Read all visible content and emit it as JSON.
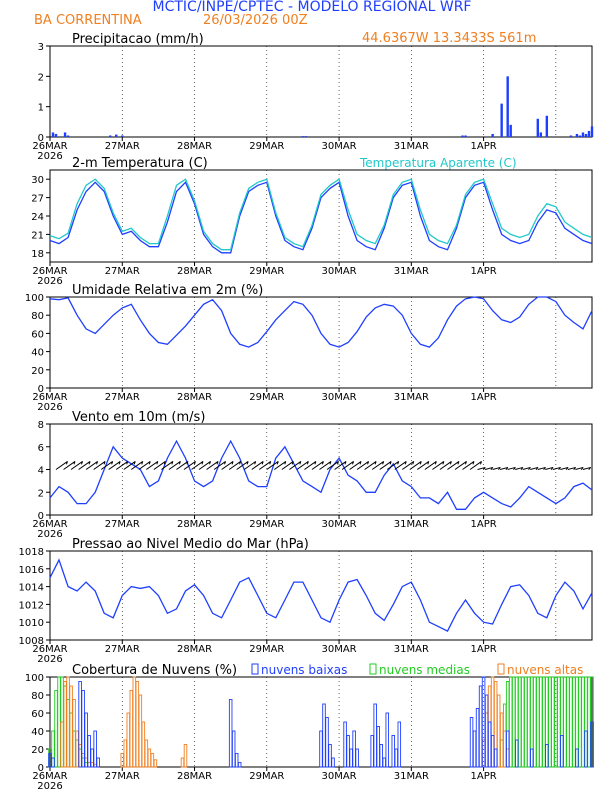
{
  "header": {
    "title": "MCTIC/INPE/CPTEC - MODELO REGIONAL WRF",
    "location": "BA CORRENTINA",
    "run": "26/03/2026 00Z",
    "coords": "44.6367W 13.3433S 561m"
  },
  "colors": {
    "blue": "#1f3fff",
    "cyan": "#22c8c8",
    "orange": "#f07f20",
    "green": "#22cc22",
    "title_blue": "#1f3fff"
  },
  "x_labels": [
    "26MAR",
    "27MAR",
    "28MAR",
    "29MAR",
    "30MAR",
    "31MAR",
    "1APR"
  ],
  "x_year": "2026",
  "chart_data": [
    {
      "id": "precip",
      "type": "bar",
      "title": "Precipitacao (mm/h)",
      "ylim": [
        0,
        3
      ],
      "yticks": [
        "0",
        "1",
        "2",
        "3"
      ],
      "x_hours": [
        1,
        2,
        5,
        6,
        20,
        22,
        24,
        84,
        85,
        137,
        138,
        147,
        150,
        152,
        153,
        162,
        163,
        165,
        173,
        175,
        176,
        177,
        178,
        179,
        180
      ],
      "values": [
        0.15,
        0.1,
        0.15,
        0.05,
        0.05,
        0.08,
        0.05,
        0.03,
        0.03,
        0.05,
        0.05,
        0.1,
        1.1,
        2.0,
        0.4,
        0.6,
        0.15,
        0.7,
        0.05,
        0.1,
        0.05,
        0.15,
        0.1,
        0.2,
        0.35
      ]
    },
    {
      "id": "temp",
      "type": "line",
      "title": "2-m Temperatura (C)",
      "legend": "Temperatura Aparente (C)",
      "ylim": [
        16.5,
        31.5
      ],
      "yticks": [
        "18",
        "21",
        "24",
        "27",
        "30"
      ],
      "series": [
        {
          "name": "2-m Temperatura",
          "color": "blue",
          "x": [
            0,
            3,
            6,
            9,
            12,
            15,
            18,
            21,
            24,
            27,
            30,
            33,
            36,
            39,
            42,
            45,
            48,
            51,
            54,
            57,
            60,
            63,
            66,
            69,
            72,
            75,
            78,
            81,
            84,
            87,
            90,
            93,
            96,
            99,
            102,
            105,
            108,
            111,
            114,
            117,
            120,
            123,
            126,
            129,
            132,
            135,
            138,
            141,
            144,
            147,
            150,
            153,
            156,
            159,
            162,
            165,
            168,
            171,
            174,
            177,
            180
          ],
          "y": [
            20,
            19.5,
            20.5,
            25,
            28,
            29.5,
            28,
            24,
            21,
            21.5,
            20,
            19,
            19,
            23,
            28,
            29.5,
            26,
            21,
            19,
            18,
            18,
            24,
            28,
            29,
            29.5,
            24,
            20,
            19,
            18.5,
            22,
            27,
            28.5,
            29.5,
            24,
            20,
            19,
            18.5,
            22,
            27,
            29,
            29.5,
            24,
            20,
            19,
            18.5,
            22,
            27,
            29,
            29.5,
            25,
            21,
            20,
            19.5,
            20,
            23,
            25,
            24.5,
            22,
            21,
            20,
            19.5
          ]
        },
        {
          "name": "Temperatura Aparente (C)",
          "color": "cyan",
          "x": [
            0,
            3,
            6,
            9,
            12,
            15,
            18,
            21,
            24,
            27,
            30,
            33,
            36,
            39,
            42,
            45,
            48,
            51,
            54,
            57,
            60,
            63,
            66,
            69,
            72,
            75,
            78,
            81,
            84,
            87,
            90,
            93,
            96,
            99,
            102,
            105,
            108,
            111,
            114,
            117,
            120,
            123,
            126,
            129,
            132,
            135,
            138,
            141,
            144,
            147,
            150,
            153,
            156,
            159,
            162,
            165,
            168,
            171,
            174,
            177,
            180
          ],
          "y": [
            20.8,
            20.3,
            21.2,
            26,
            29,
            30,
            28.5,
            24.5,
            21.5,
            22,
            20.5,
            19.5,
            19.5,
            24,
            29,
            30,
            26.5,
            21.5,
            19.5,
            18.5,
            18.5,
            24.5,
            28.5,
            29.5,
            30,
            24.5,
            20.5,
            19.5,
            19,
            22.5,
            27.5,
            29,
            30,
            25,
            21,
            20,
            19.5,
            22.5,
            27.5,
            29.5,
            30,
            25,
            21,
            20,
            19.5,
            22.5,
            27.5,
            29.5,
            30,
            26,
            22,
            21,
            20.5,
            21,
            24,
            26,
            25.5,
            23,
            22,
            21,
            20.5
          ]
        }
      ]
    },
    {
      "id": "rh",
      "type": "line",
      "title": "Umidade Relativa em 2m (%)",
      "ylim": [
        0,
        100
      ],
      "yticks": [
        "0",
        "20",
        "40",
        "60",
        "80",
        "100"
      ],
      "series": [
        {
          "name": "Umidade Relativa",
          "color": "blue",
          "x": [
            0,
            3,
            6,
            9,
            12,
            15,
            18,
            21,
            24,
            27,
            30,
            33,
            36,
            39,
            42,
            45,
            48,
            51,
            54,
            57,
            60,
            63,
            66,
            69,
            72,
            75,
            78,
            81,
            84,
            87,
            90,
            93,
            96,
            99,
            102,
            105,
            108,
            111,
            114,
            117,
            120,
            123,
            126,
            129,
            132,
            135,
            138,
            141,
            144,
            147,
            150,
            153,
            156,
            159,
            162,
            165,
            168,
            171,
            174,
            177,
            180
          ],
          "y": [
            98,
            97,
            99,
            80,
            65,
            60,
            70,
            80,
            88,
            92,
            75,
            60,
            50,
            48,
            58,
            68,
            80,
            92,
            97,
            85,
            60,
            48,
            45,
            50,
            62,
            75,
            85,
            95,
            92,
            80,
            60,
            48,
            45,
            50,
            62,
            78,
            88,
            92,
            90,
            80,
            60,
            48,
            45,
            55,
            75,
            90,
            98,
            100,
            98,
            85,
            75,
            72,
            78,
            92,
            100,
            100,
            95,
            80,
            72,
            65,
            85
          ]
        }
      ]
    },
    {
      "id": "wind",
      "type": "line",
      "title": "Vento em 10m (m/s)",
      "ylim": [
        0,
        8
      ],
      "yticks": [
        "0",
        "2",
        "4",
        "6",
        "8"
      ],
      "series": [
        {
          "name": "Vento",
          "color": "blue",
          "x": [
            0,
            3,
            6,
            9,
            12,
            15,
            18,
            21,
            24,
            27,
            30,
            33,
            36,
            39,
            42,
            45,
            48,
            51,
            54,
            57,
            60,
            63,
            66,
            69,
            72,
            75,
            78,
            81,
            84,
            87,
            90,
            93,
            96,
            99,
            102,
            105,
            108,
            111,
            114,
            117,
            120,
            123,
            126,
            129,
            132,
            135,
            138,
            141,
            144,
            147,
            150,
            153,
            156,
            159,
            162,
            165,
            168,
            171,
            174,
            177,
            180
          ],
          "y": [
            1.5,
            2.5,
            2,
            1,
            1,
            2,
            4,
            6,
            5,
            4.5,
            4,
            2.5,
            3,
            5,
            6.5,
            5,
            3,
            2.5,
            3,
            5,
            6.5,
            5,
            3,
            2.5,
            2.5,
            5,
            6,
            4.5,
            3,
            2.5,
            2,
            4,
            5,
            3.5,
            3,
            2,
            2,
            3.5,
            4.5,
            3,
            2.5,
            1.5,
            1.5,
            1,
            2,
            0.5,
            0.5,
            1.5,
            2,
            1.5,
            1,
            0.7,
            1.5,
            2.5,
            2,
            1.5,
            1,
            1.5,
            2.5,
            2.8,
            2.2
          ]
        }
      ],
      "arrows_note": "wind direction barbs drawn at y=4"
    },
    {
      "id": "slp",
      "type": "line",
      "title": "Pressao ao Nivel Medio do Mar (hPa)",
      "ylim": [
        1008,
        1018
      ],
      "yticks": [
        "1008",
        "1010",
        "1012",
        "1014",
        "1016",
        "1018"
      ],
      "series": [
        {
          "name": "Pressao",
          "color": "blue",
          "x": [
            0,
            3,
            6,
            9,
            12,
            15,
            18,
            21,
            24,
            27,
            30,
            33,
            36,
            39,
            42,
            45,
            48,
            51,
            54,
            57,
            60,
            63,
            66,
            69,
            72,
            75,
            78,
            81,
            84,
            87,
            90,
            93,
            96,
            99,
            102,
            105,
            108,
            111,
            114,
            117,
            120,
            123,
            126,
            129,
            132,
            135,
            138,
            141,
            144,
            147,
            150,
            153,
            156,
            159,
            162,
            165,
            168,
            171,
            174,
            177,
            180
          ],
          "y": [
            1015,
            1017,
            1014,
            1013.5,
            1014.5,
            1013.5,
            1011,
            1010.5,
            1013,
            1014,
            1013.8,
            1014,
            1013,
            1011,
            1011.5,
            1013.5,
            1014.2,
            1013,
            1011,
            1010.5,
            1012.5,
            1014.5,
            1015,
            1013,
            1011,
            1010.5,
            1012.5,
            1014.5,
            1014.5,
            1012.5,
            1010.5,
            1010,
            1012.5,
            1014.5,
            1014.8,
            1013,
            1011,
            1010.2,
            1012,
            1014,
            1014.5,
            1012.5,
            1010,
            1009.5,
            1009,
            1011,
            1012.5,
            1011,
            1010,
            1009.8,
            1012,
            1014,
            1014.2,
            1013,
            1011,
            1010.5,
            1013,
            1014.5,
            1013.5,
            1011.5,
            1013.3
          ]
        }
      ]
    },
    {
      "id": "clouds",
      "type": "bar",
      "title": "Cobertura de Nuvens (%)",
      "legend": [
        "nuvens baixas",
        "nuvens medias",
        "nuvens altas"
      ],
      "ylim": [
        0,
        100
      ],
      "yticks": [
        "0",
        "20",
        "40",
        "60",
        "80",
        "100"
      ],
      "series": [
        {
          "name": "nuvens medias",
          "color": "green",
          "x": [
            0,
            1,
            2,
            3,
            4,
            5,
            6,
            7,
            8,
            9,
            10,
            11,
            12,
            144,
            145,
            146,
            147,
            148,
            149,
            150,
            151,
            152,
            153,
            154,
            155,
            156,
            157,
            158,
            159,
            160,
            161,
            162,
            163,
            164,
            165,
            166,
            167,
            168,
            169,
            170,
            171,
            172,
            173,
            174,
            175,
            176,
            177,
            178,
            179,
            180
          ],
          "values": [
            20,
            40,
            85,
            100,
            100,
            90,
            75,
            60,
            40,
            30,
            20,
            10,
            5,
            0,
            0,
            0,
            0,
            0,
            0,
            30,
            70,
            95,
            100,
            100,
            100,
            100,
            100,
            100,
            100,
            100,
            100,
            100,
            100,
            100,
            100,
            100,
            100,
            100,
            100,
            100,
            100,
            100,
            100,
            100,
            100,
            100,
            100,
            100,
            100,
            100
          ]
        },
        {
          "name": "nuvens altas",
          "color": "orange",
          "x": [
            4,
            5,
            6,
            7,
            8,
            9,
            10,
            11,
            12,
            13,
            14,
            15,
            24,
            25,
            26,
            27,
            28,
            29,
            30,
            31,
            32,
            33,
            34,
            35,
            44,
            45,
            144,
            145,
            146,
            147,
            148,
            149,
            150,
            151,
            152
          ],
          "values": [
            50,
            95,
            100,
            90,
            75,
            40,
            25,
            15,
            10,
            5,
            5,
            3,
            15,
            30,
            60,
            85,
            100,
            95,
            80,
            50,
            30,
            20,
            15,
            8,
            10,
            25,
            30,
            60,
            90,
            100,
            95,
            80,
            60,
            40,
            20
          ]
        },
        {
          "name": "nuvens baixas",
          "color": "blue",
          "x": [
            0,
            1,
            10,
            11,
            12,
            13,
            14,
            15,
            16,
            60,
            61,
            62,
            63,
            90,
            91,
            92,
            93,
            94,
            98,
            99,
            100,
            101,
            102,
            107,
            108,
            109,
            110,
            111,
            112,
            114,
            115,
            116,
            140,
            141,
            142,
            143,
            144,
            145,
            146,
            147,
            148,
            152,
            155,
            160,
            165,
            170,
            175,
            178,
            180
          ],
          "values": [
            15,
            10,
            95,
            85,
            60,
            35,
            20,
            40,
            10,
            75,
            40,
            15,
            5,
            40,
            70,
            55,
            25,
            10,
            50,
            35,
            20,
            40,
            20,
            35,
            70,
            45,
            25,
            10,
            60,
            35,
            20,
            50,
            55,
            40,
            65,
            90,
            100,
            80,
            50,
            35,
            20,
            40,
            30,
            20,
            25,
            35,
            20,
            40,
            50
          ]
        }
      ]
    }
  ]
}
